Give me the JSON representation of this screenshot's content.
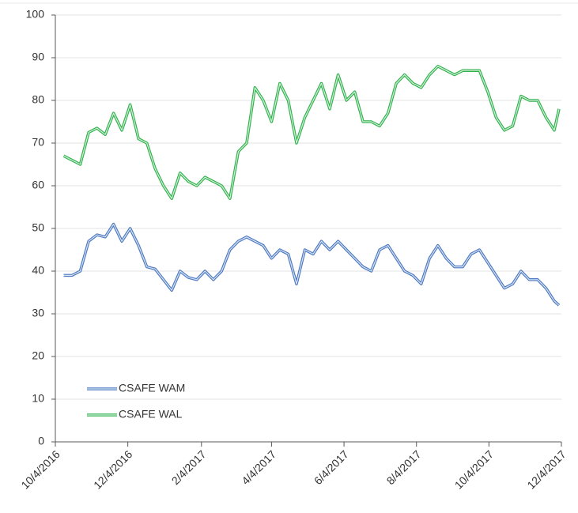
{
  "chart_data": {
    "type": "line",
    "x": [
      "10/11/2016",
      "10/18/2016",
      "10/25/2016",
      "11/1/2016",
      "11/8/2016",
      "11/15/2016",
      "11/22/2016",
      "11/29/2016",
      "12/6/2016",
      "12/13/2016",
      "12/20/2016",
      "12/27/2016",
      "1/3/2017",
      "1/10/2017",
      "1/17/2017",
      "1/24/2017",
      "1/31/2017",
      "2/7/2017",
      "2/14/2017",
      "2/21/2017",
      "2/28/2017",
      "3/7/2017",
      "3/14/2017",
      "3/21/2017",
      "3/28/2017",
      "4/4/2017",
      "4/11/2017",
      "4/18/2017",
      "4/25/2017",
      "5/2/2017",
      "5/9/2017",
      "5/16/2017",
      "5/23/2017",
      "5/30/2017",
      "6/6/2017",
      "6/13/2017",
      "6/20/2017",
      "6/27/2017",
      "7/4/2017",
      "7/11/2017",
      "7/18/2017",
      "7/25/2017",
      "8/1/2017",
      "8/8/2017",
      "8/15/2017",
      "8/22/2017",
      "8/29/2017",
      "9/5/2017",
      "9/12/2017",
      "9/19/2017",
      "9/26/2017",
      "10/3/2017",
      "10/10/2017",
      "10/17/2017",
      "10/24/2017",
      "10/31/2017",
      "11/7/2017",
      "11/14/2017",
      "11/21/2017",
      "11/28/2017",
      "12/2/2017"
    ],
    "series": [
      {
        "name": "CSAFE WAM",
        "color": "#4a78c2",
        "values": [
          39,
          39,
          40,
          47,
          48.5,
          48,
          51,
          47,
          50,
          46,
          41,
          40.5,
          38,
          35.5,
          40,
          38.5,
          38,
          40,
          38,
          40,
          45,
          47,
          48,
          47,
          46,
          43,
          45,
          44,
          37,
          45,
          44,
          47,
          45,
          47,
          45,
          43,
          41,
          40,
          45,
          46,
          43,
          40,
          39,
          37,
          43,
          46,
          43,
          41,
          41,
          44,
          45,
          42,
          39,
          36,
          37,
          40,
          38,
          38,
          36,
          33,
          32
        ]
      },
      {
        "name": "CSAFE WAL",
        "color": "#2fb24c",
        "values": [
          67,
          66,
          65,
          72.5,
          73.5,
          72,
          77,
          73,
          79,
          71,
          70,
          64,
          60,
          57,
          63,
          61,
          60,
          62,
          61,
          60,
          57,
          68,
          70,
          83,
          80,
          75,
          84,
          80,
          70,
          76,
          80,
          84,
          78,
          86,
          80,
          82,
          75,
          75,
          74,
          77,
          84,
          86,
          84,
          83,
          86,
          88,
          87,
          86,
          87,
          87,
          87,
          82,
          76,
          73,
          74,
          81,
          80,
          80,
          76,
          73,
          78
        ]
      }
    ],
    "xlim": [
      "10/4/2016",
      "12/4/2017"
    ],
    "xticks": [
      "10/4/2016",
      "12/4/2016",
      "2/4/2017",
      "4/4/2017",
      "6/4/2017",
      "8/4/2017",
      "10/4/2017",
      "12/4/2017"
    ],
    "ylim": [
      0,
      100
    ],
    "yticks": [
      0,
      10,
      20,
      30,
      40,
      50,
      60,
      70,
      80,
      90,
      100
    ],
    "grid": true,
    "legend": "lower left"
  }
}
